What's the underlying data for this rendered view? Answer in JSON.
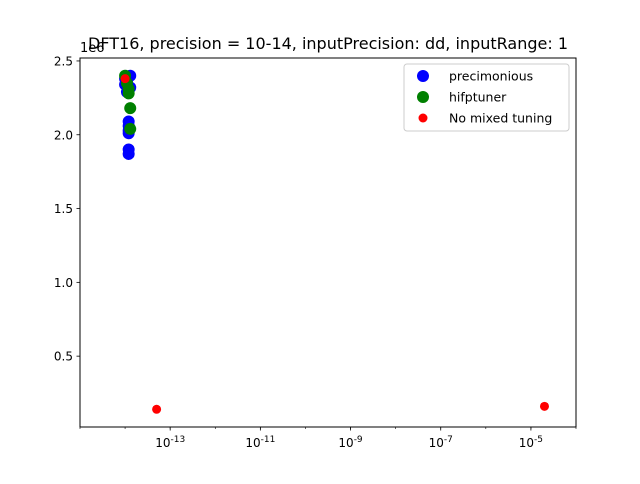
{
  "chart_data": {
    "type": "scatter",
    "title": "DFT16, precision = 10-14, inputPrecision: dd, inputRange: 1",
    "xlabel": "",
    "ylabel": "",
    "xscale": "log",
    "xlim": [
      1e-15,
      0.0001
    ],
    "ylim": [
      20000,
      2520000
    ],
    "y_offset_label": "1e6",
    "grid": false,
    "legend_position": "upper right",
    "x_tick_labels": [
      "10^-13",
      "10^-11",
      "10^-9",
      "10^-7",
      "10^-5"
    ],
    "x_tick_values": [
      1e-13,
      1e-11,
      1e-09,
      1e-07,
      1e-05
    ],
    "y_tick_labels": [
      "0.5",
      "1.0",
      "1.5",
      "2.0",
      "2.5"
    ],
    "y_tick_values": [
      500000,
      1000000,
      1500000,
      2000000,
      2500000
    ],
    "series": [
      {
        "name": "precimonious",
        "color": "#0000ff",
        "points": [
          {
            "x": 1e-14,
            "y": 2380000
          },
          {
            "x": 1.1e-14,
            "y": 2360000
          },
          {
            "x": 1e-14,
            "y": 2340000
          },
          {
            "x": 1.3e-14,
            "y": 2400000
          },
          {
            "x": 1.3e-14,
            "y": 2320000
          },
          {
            "x": 1.1e-14,
            "y": 2290000
          },
          {
            "x": 1.2e-14,
            "y": 2090000
          },
          {
            "x": 1.2e-14,
            "y": 2060000
          },
          {
            "x": 1.2e-14,
            "y": 2030000
          },
          {
            "x": 1.2e-14,
            "y": 2010000
          },
          {
            "x": 1.2e-14,
            "y": 1900000
          },
          {
            "x": 1.2e-14,
            "y": 1870000
          }
        ]
      },
      {
        "name": "hifptuner",
        "color": "#008000",
        "points": [
          {
            "x": 1e-14,
            "y": 2400000
          },
          {
            "x": 1.1e-14,
            "y": 2350000
          },
          {
            "x": 1.2e-14,
            "y": 2310000
          },
          {
            "x": 1.2e-14,
            "y": 2280000
          },
          {
            "x": 1.3e-14,
            "y": 2180000
          },
          {
            "x": 1.3e-14,
            "y": 2040000
          }
        ]
      },
      {
        "name": "No mixed tuning",
        "color": "#ff0000",
        "points": [
          {
            "x": 1e-14,
            "y": 2380000
          },
          {
            "x": 5e-14,
            "y": 140000
          },
          {
            "x": 2e-05,
            "y": 160000
          }
        ]
      }
    ]
  }
}
